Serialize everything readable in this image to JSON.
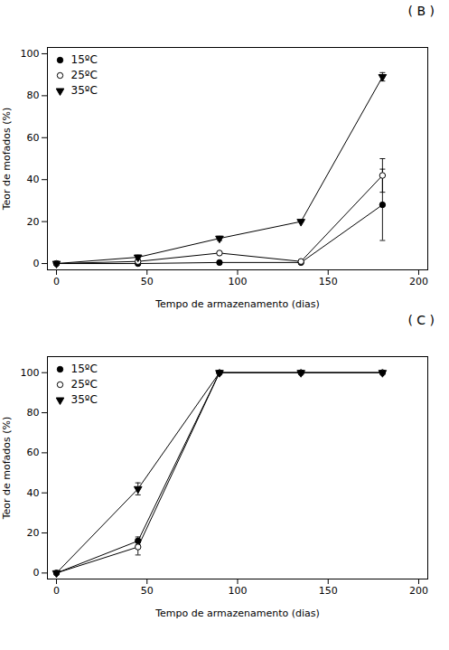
{
  "chart_data": [
    {
      "type": "line",
      "title": "( B )",
      "xlabel": "Tempo de armazenamento (dias)",
      "ylabel": "Teor de mofados (%)",
      "x": [
        0,
        45,
        90,
        135,
        180
      ],
      "series": [
        {
          "name": "15ºC",
          "color": "black",
          "marker": "circle",
          "values": [
            0,
            0,
            0.5,
            0.5,
            28
          ],
          "yerr": [
            0,
            0,
            0,
            0,
            17
          ]
        },
        {
          "name": "25ºC",
          "color": "black",
          "marker": "open_circle",
          "values": [
            0,
            1,
            5,
            1,
            42
          ],
          "yerr": [
            0,
            0,
            0,
            0,
            8
          ]
        },
        {
          "name": "35ºC",
          "color": "black",
          "marker": "triangle_down",
          "values": [
            0,
            3,
            12,
            20,
            89
          ],
          "yerr": [
            0,
            1,
            1,
            0,
            2
          ]
        }
      ],
      "xlim": [
        -5,
        205
      ],
      "xticks": [
        0,
        50,
        100,
        150,
        200
      ],
      "ylim": [
        -3,
        103
      ],
      "yticks": [
        0,
        20,
        40,
        60,
        80,
        100
      ],
      "legend": "upper left",
      "grid": false
    },
    {
      "type": "line",
      "title": "( C )",
      "xlabel": "Tempo de armazenamento (dias)",
      "ylabel": "Teor de mofados (%)",
      "x": [
        0,
        45,
        90,
        135,
        180
      ],
      "series": [
        {
          "name": "15ºC",
          "color": "black",
          "marker": "circle",
          "values": [
            0,
            16,
            100,
            100,
            100
          ],
          "yerr": [
            0,
            2,
            0,
            0,
            0
          ]
        },
        {
          "name": "25ºC",
          "color": "black",
          "marker": "open_circle",
          "values": [
            0,
            13,
            100,
            100,
            100
          ],
          "yerr": [
            0,
            4,
            0,
            0,
            0
          ]
        },
        {
          "name": "35ºC",
          "color": "black",
          "marker": "triangle_down",
          "values": [
            0,
            42,
            100,
            100,
            100
          ],
          "yerr": [
            0,
            3,
            0,
            0,
            0
          ]
        }
      ],
      "xlim": [
        -5,
        205
      ],
      "xticks": [
        0,
        50,
        100,
        150,
        200
      ],
      "ylim": [
        -3,
        108
      ],
      "yticks": [
        0,
        20,
        40,
        60,
        80,
        100
      ],
      "legend": "upper left",
      "grid": false
    }
  ]
}
